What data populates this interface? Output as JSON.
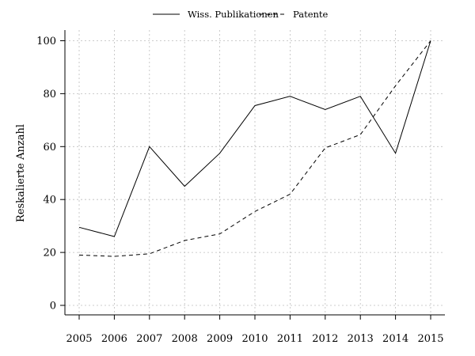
{
  "chart_data": {
    "type": "line",
    "x": [
      2005,
      2006,
      2007,
      2008,
      2009,
      2010,
      2011,
      2012,
      2013,
      2014,
      2015
    ],
    "series": [
      {
        "name": "Wiss. Publikationen",
        "style": "solid",
        "values": [
          29.5,
          26,
          60,
          45,
          57.5,
          75.5,
          79,
          74,
          79,
          57.5,
          100
        ]
      },
      {
        "name": "Patente",
        "style": "dashed",
        "values": [
          19,
          18.5,
          19.5,
          24.5,
          27,
          35.5,
          42,
          59.5,
          64.5,
          83,
          100
        ]
      }
    ],
    "title": "",
    "xlabel": "",
    "ylabel": "Reskalierte Anzahl",
    "yticks": [
      0,
      20,
      40,
      60,
      80,
      100
    ],
    "ylim": [
      -4,
      105
    ],
    "grid": true,
    "legend_position": "top"
  }
}
